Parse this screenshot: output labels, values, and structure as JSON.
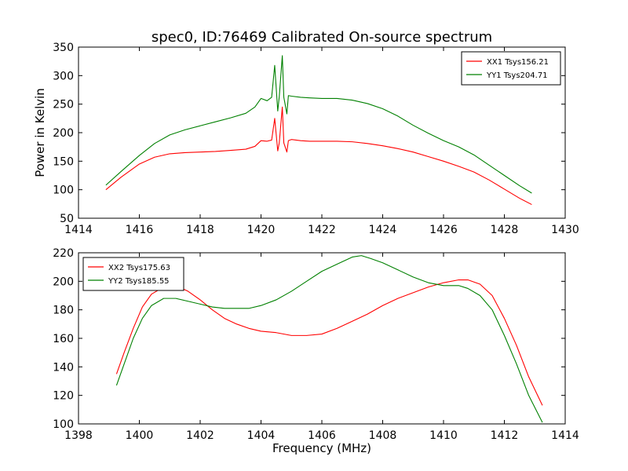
{
  "title": "spec0, ID:76469 Calibrated On-source spectrum",
  "chart_data": [
    {
      "type": "line",
      "ylabel": "Power in Kelvin",
      "xlabel": "",
      "xlim": [
        1414,
        1430
      ],
      "ylim": [
        50,
        350
      ],
      "xticks": [
        1414,
        1416,
        1418,
        1420,
        1422,
        1424,
        1426,
        1428,
        1430
      ],
      "yticks": [
        50,
        100,
        150,
        200,
        250,
        300,
        350
      ],
      "legend_position": "top-right",
      "series": [
        {
          "name": "XX1 Tsys156.21",
          "color": "#ff0000",
          "x": [
            1414.9,
            1415.4,
            1416.0,
            1416.5,
            1417.0,
            1417.5,
            1418.0,
            1418.5,
            1419.0,
            1419.5,
            1419.8,
            1420.0,
            1420.2,
            1420.35,
            1420.45,
            1420.55,
            1420.6,
            1420.7,
            1420.75,
            1420.85,
            1420.9,
            1421.0,
            1421.3,
            1421.6,
            1422.0,
            1422.5,
            1423.0,
            1423.5,
            1424.0,
            1424.5,
            1425.0,
            1425.5,
            1426.0,
            1426.5,
            1427.0,
            1427.5,
            1428.0,
            1428.5,
            1428.9
          ],
          "y": [
            100,
            122,
            145,
            157,
            163,
            165,
            166,
            167,
            169,
            171,
            176,
            186,
            185,
            187,
            225,
            168,
            182,
            245,
            182,
            166,
            186,
            188,
            186,
            185,
            185,
            185,
            184,
            181,
            177,
            172,
            166,
            158,
            150,
            141,
            131,
            117,
            101,
            85,
            74
          ]
        },
        {
          "name": "YY1 Tsys204.71",
          "color": "#008000",
          "x": [
            1414.9,
            1415.4,
            1416.0,
            1416.5,
            1417.0,
            1417.5,
            1418.0,
            1418.5,
            1419.0,
            1419.5,
            1419.8,
            1420.0,
            1420.2,
            1420.35,
            1420.45,
            1420.55,
            1420.6,
            1420.7,
            1420.75,
            1420.85,
            1420.9,
            1421.0,
            1421.3,
            1421.6,
            1422.0,
            1422.5,
            1423.0,
            1423.5,
            1424.0,
            1424.5,
            1425.0,
            1425.5,
            1426.0,
            1426.5,
            1427.0,
            1427.5,
            1428.0,
            1428.5,
            1428.9
          ],
          "y": [
            108,
            132,
            160,
            181,
            196,
            205,
            212,
            219,
            226,
            234,
            245,
            260,
            256,
            262,
            318,
            238,
            263,
            335,
            262,
            233,
            265,
            264,
            262,
            261,
            260,
            260,
            257,
            251,
            242,
            229,
            213,
            199,
            186,
            175,
            161,
            143,
            125,
            107,
            94
          ]
        }
      ]
    },
    {
      "type": "line",
      "ylabel": "",
      "xlabel": "Frequency (MHz)",
      "xlim": [
        1398,
        1414
      ],
      "ylim": [
        100,
        220
      ],
      "xticks": [
        1398,
        1400,
        1402,
        1404,
        1406,
        1408,
        1410,
        1412,
        1414
      ],
      "yticks": [
        100,
        120,
        140,
        160,
        180,
        200,
        220
      ],
      "legend_position": "top-left",
      "series": [
        {
          "name": "XX2 Tsys175.63",
          "color": "#ff0000",
          "x": [
            1399.25,
            1399.5,
            1399.8,
            1400.1,
            1400.4,
            1400.8,
            1401.2,
            1401.6,
            1402.0,
            1402.4,
            1402.8,
            1403.2,
            1403.6,
            1404.0,
            1404.5,
            1405.0,
            1405.5,
            1406.0,
            1406.5,
            1407.0,
            1407.5,
            1408.0,
            1408.5,
            1409.0,
            1409.5,
            1410.0,
            1410.5,
            1410.8,
            1411.2,
            1411.6,
            1412.0,
            1412.4,
            1412.8,
            1413.25
          ],
          "y": [
            135,
            150,
            167,
            182,
            191,
            196,
            197,
            193,
            187,
            180,
            174,
            170,
            167,
            165,
            164,
            162,
            162,
            163,
            167,
            172,
            177,
            183,
            188,
            192,
            196,
            199,
            201,
            201,
            198,
            190,
            174,
            155,
            133,
            113
          ]
        },
        {
          "name": "YY2 Tsys185.55",
          "color": "#008000",
          "x": [
            1399.25,
            1399.5,
            1399.8,
            1400.1,
            1400.4,
            1400.8,
            1401.2,
            1401.6,
            1402.0,
            1402.4,
            1402.8,
            1403.2,
            1403.6,
            1404.0,
            1404.5,
            1405.0,
            1405.5,
            1406.0,
            1406.5,
            1407.0,
            1407.3,
            1407.6,
            1408.0,
            1408.5,
            1409.0,
            1409.5,
            1410.0,
            1410.5,
            1410.8,
            1411.2,
            1411.6,
            1412.0,
            1412.4,
            1412.8,
            1413.25
          ],
          "y": [
            127,
            142,
            160,
            174,
            183,
            188,
            188,
            186,
            184,
            182,
            181,
            181,
            181,
            183,
            187,
            193,
            200,
            207,
            212,
            217,
            218,
            216,
            213,
            208,
            203,
            199,
            197,
            197,
            195,
            190,
            180,
            162,
            142,
            120,
            101
          ]
        }
      ]
    }
  ]
}
